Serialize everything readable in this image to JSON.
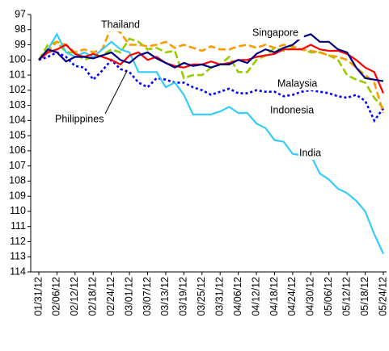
{
  "chart_data": {
    "type": "line",
    "categories": [
      "01/31/12",
      null,
      "02/06/12",
      null,
      "02/12/12",
      null,
      "02/18/12",
      null,
      "02/24/12",
      null,
      "03/01/12",
      null,
      "03/07/12",
      null,
      "03/13/12",
      null,
      "03/19/12",
      null,
      "03/25/12",
      null,
      "03/31/12",
      null,
      "04/06/12",
      null,
      "04/12/12",
      null,
      "04/18/12",
      null,
      "04/24/12",
      null,
      "04/30/12",
      null,
      "05/06/12",
      null,
      "05/12/12",
      null,
      "05/18/12",
      null,
      "05/24/12"
    ],
    "series": [
      {
        "name": "Indonesia",
        "color": "#0000ff",
        "style": "dotted",
        "values": [
          100,
          99.8,
          99.5,
          99.8,
          100.4,
          100.5,
          101.3,
          100.7,
          100.0,
          100.6,
          100.8,
          101.5,
          101.8,
          101.2,
          101.3,
          101.5,
          101.5,
          101.8,
          102.0,
          102.3,
          102.1,
          101.9,
          102.2,
          102.2,
          102.0,
          102.1,
          102.1,
          102.4,
          102.3,
          102.1,
          102.0,
          102.1,
          102.2,
          102.4,
          102.5,
          102.3,
          102.7,
          104.0,
          103.2
        ]
      },
      {
        "name": "Malaysia",
        "color": "#99cc00",
        "style": "dashed",
        "values": [
          100,
          99.0,
          98.8,
          99.5,
          99.5,
          100.0,
          99.8,
          99.7,
          99.3,
          99.5,
          98.6,
          98.8,
          99.3,
          99.2,
          99.5,
          99.4,
          101.2,
          101.0,
          101.0,
          100.5,
          100.3,
          99.8,
          100.8,
          100.8,
          100.0,
          99.7,
          99.2,
          99.4,
          99.2,
          99.3,
          99.5,
          99.5,
          99.7,
          100.0,
          101.0,
          101.3,
          101.5,
          102.5,
          103.2
        ]
      },
      {
        "name": "Thailand",
        "color": "#ff9900",
        "style": "dashed",
        "values": [
          100,
          99.4,
          98.8,
          99.0,
          99.5,
          99.3,
          99.5,
          99.3,
          97.8,
          98.2,
          99.0,
          99.0,
          99.1,
          99.0,
          98.8,
          99.2,
          99.0,
          99.2,
          99.4,
          99.1,
          99.3,
          99.3,
          99.1,
          99.0,
          99.2,
          99.0,
          99.2,
          99.0,
          99.1,
          99.3,
          99.4,
          99.5,
          99.7,
          99.8,
          100.0,
          100.5,
          101.0,
          101.5,
          103.5
        ]
      },
      {
        "name": "India",
        "color": "#33ccff",
        "style": "solid",
        "values": [
          100,
          99.3,
          98.3,
          99.5,
          99.8,
          99.5,
          99.8,
          99.3,
          98.8,
          99.3,
          99.5,
          100.8,
          100.8,
          100.8,
          101.8,
          101.5,
          102.3,
          103.6,
          103.6,
          103.6,
          103.4,
          103.1,
          103.5,
          103.5,
          104.2,
          104.5,
          105.3,
          105.4,
          106.2,
          106.3,
          106.3,
          107.5,
          107.9,
          108.5,
          108.8,
          109.3,
          110.0,
          111.5,
          112.8
        ]
      },
      {
        "name": "Philippines",
        "color": "#ff0000",
        "style": "solid",
        "values": [
          100,
          99.5,
          99.3,
          99.0,
          99.6,
          99.8,
          99.6,
          99.8,
          100.0,
          100.3,
          99.7,
          99.5,
          100.0,
          99.8,
          100.2,
          100.4,
          100.5,
          100.3,
          100.3,
          100.1,
          100.3,
          100.2,
          100.0,
          100.0,
          99.8,
          99.7,
          99.6,
          99.3,
          99.3,
          99.3,
          99.0,
          99.3,
          99.4,
          99.4,
          99.6,
          100.0,
          100.5,
          100.8,
          102.2
        ]
      },
      {
        "name": "Singapore",
        "color": "#000080",
        "style": "solid",
        "values": [
          100,
          99.3,
          99.5,
          100.1,
          99.8,
          99.8,
          99.9,
          99.7,
          99.5,
          100.0,
          100.2,
          99.7,
          99.5,
          99.9,
          100.2,
          100.5,
          100.2,
          100.4,
          100.3,
          100.5,
          100.3,
          100.3,
          100.0,
          100.2,
          99.6,
          99.3,
          99.5,
          99.2,
          99.0,
          98.5,
          98.3,
          98.8,
          98.8,
          99.3,
          99.5,
          100.5,
          101.2,
          101.3,
          101.4
        ]
      }
    ],
    "ylim": [
      97,
      114
    ],
    "y_inverted": true,
    "yticks": [
      97,
      98,
      99,
      100,
      101,
      102,
      103,
      104,
      105,
      106,
      107,
      108,
      109,
      110,
      111,
      112,
      113,
      114
    ],
    "grid": false
  }
}
